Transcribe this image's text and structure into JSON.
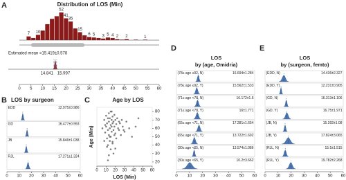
{
  "chart_data": [
    {
      "type": "histogram",
      "panel_label": "A",
      "title": "Distribution of LOS (Min)",
      "bins": [
        3,
        5,
        7,
        9,
        11,
        13,
        15,
        17,
        19,
        21,
        23,
        25,
        27,
        29,
        31,
        33,
        35,
        37,
        39,
        41,
        43,
        45,
        47,
        49,
        51,
        53,
        55,
        57
      ],
      "values": [
        7,
        4,
        10,
        18,
        30,
        40,
        45,
        52,
        41,
        35,
        22,
        15,
        9,
        6,
        5,
        4,
        3,
        5,
        4,
        2,
        1,
        2,
        0,
        1,
        0,
        1,
        0
      ],
      "value_labels": [
        "7",
        null,
        "10",
        null,
        null,
        null,
        null,
        "52",
        "41",
        "35",
        null,
        "15",
        null,
        "6",
        "5",
        null,
        "3",
        "5",
        "4",
        "2",
        null,
        "2",
        null,
        null,
        null,
        "1",
        null
      ],
      "color": "#8b1a1a",
      "xlim": [
        0,
        60
      ],
      "xticks": [
        0,
        5,
        10,
        15,
        20,
        25,
        30,
        35,
        40,
        45,
        50,
        55,
        60
      ],
      "mean": {
        "text": "Estimated mean =15.419±0.578",
        "value": 15.419,
        "low": 14.841,
        "high": 15.997
      }
    },
    {
      "type": "interval",
      "panel_label": "B",
      "title": "LOS by surgeon",
      "color": "#2e5c9e",
      "xlim": [
        0,
        60
      ],
      "xticks": [
        0,
        10,
        20,
        30,
        40,
        50,
        60
      ],
      "rows": [
        {
          "name": "EDD",
          "mean": 12.975,
          "sd": 0.986,
          "label": "12.975±0.986"
        },
        {
          "name": "GD",
          "mean": 16.477,
          "sd": 0.993,
          "label": "16.477±0.993"
        },
        {
          "name": "JB",
          "mean": 15.846,
          "sd": 1.038,
          "label": "15.846±1.038"
        },
        {
          "name": "RJL",
          "mean": 17.271,
          "sd": 1.324,
          "label": "17.271±1.324"
        }
      ]
    },
    {
      "type": "scatter",
      "panel_label": "C",
      "title": "Age by LOS",
      "x_label": "LOS (Min)",
      "y_label": "Age (Min)",
      "color": "#555555",
      "xlim": [
        0,
        60
      ],
      "xticks": [
        0,
        10,
        20,
        30,
        40,
        50,
        60
      ],
      "ylim": [
        15,
        85
      ],
      "yticks": [
        20,
        30,
        40,
        50,
        60,
        70,
        80
      ],
      "x": [
        8,
        9,
        10,
        10,
        11,
        11,
        12,
        12,
        12,
        13,
        13,
        13,
        14,
        14,
        14,
        15,
        15,
        15,
        15,
        16,
        16,
        16,
        17,
        17,
        17,
        18,
        18,
        18,
        19,
        19,
        20,
        20,
        21,
        21,
        22,
        23,
        24,
        25,
        26,
        27,
        28,
        30,
        32,
        35,
        38,
        42,
        45,
        8,
        11,
        14,
        17,
        20,
        13,
        16,
        19,
        6,
        9,
        24,
        29,
        12
      ],
      "y": [
        70,
        55,
        62,
        75,
        48,
        66,
        72,
        58,
        40,
        68,
        52,
        78,
        60,
        45,
        72,
        64,
        50,
        35,
        80,
        70,
        56,
        62,
        74,
        44,
        66,
        58,
        68,
        30,
        62,
        76,
        54,
        70,
        65,
        48,
        72,
        60,
        58,
        66,
        52,
        70,
        62,
        56,
        68,
        60,
        50,
        62,
        72,
        45,
        38,
        50,
        42,
        36,
        28,
        80,
        52,
        60,
        64,
        68,
        58,
        22
      ]
    },
    {
      "type": "interval",
      "panel_label": "D",
      "title": "LOS",
      "subtitle": "by (age, Omidria)",
      "color": "#2e5c9e",
      "xlim": [
        0,
        60
      ],
      "xticks": [
        0,
        10,
        20,
        30,
        40,
        50,
        60
      ],
      "rows": [
        {
          "name": "(78≤ age ≤92, N)",
          "mean": 16.694,
          "sd": 1.284,
          "label": "16.694±1.284"
        },
        {
          "name": "(78≤ age ≤92, Y)",
          "mean": 15.562,
          "sd": 1.533,
          "label": "15.562±1.533"
        },
        {
          "name": "(71≤ age <78, N)",
          "mean": 16.172,
          "sd": 1.6,
          "label": "16.172±1.6"
        },
        {
          "name": "(71≤ age <78, Y)",
          "mean": 16,
          "sd": 1.771,
          "label": "16±1.771"
        },
        {
          "name": "(65≤ age <71, N)",
          "mean": 17.281,
          "sd": 1.654,
          "label": "17.281±1.654"
        },
        {
          "name": "(65≤ age <71, Y)",
          "mean": 13.722,
          "sd": 1.692,
          "label": "13.722±1.692"
        },
        {
          "name": "(30≤ age <65, N)",
          "mean": 13.574,
          "sd": 1.086,
          "label": "13.574±1.086"
        },
        {
          "name": "(30≤ age <65, Y)",
          "mean": 10.2,
          "sd": 3.662,
          "label": "10.2±3.662"
        }
      ]
    },
    {
      "type": "interval",
      "panel_label": "E",
      "title": "LOS",
      "subtitle": "by (surgeon, femto)",
      "color": "#2e5c9e",
      "xlim": [
        0,
        60
      ],
      "xticks": [
        0,
        10,
        20,
        30,
        40,
        50,
        60
      ],
      "rows": [
        {
          "name": "(EDD, N)",
          "mean": 14.436,
          "sd": 2.327,
          "label": "14.436±2.327"
        },
        {
          "name": "(EDD, Y)",
          "mean": 12.231,
          "sd": 0.905,
          "label": "12.231±0.905"
        },
        {
          "name": "(GD, N)",
          "mean": 16.313,
          "sd": 1.106,
          "label": "16.313±1.106"
        },
        {
          "name": "(GD, Y)",
          "mean": 16.75,
          "sd": 1.971,
          "label": "16.75±1.971"
        },
        {
          "name": "(JB, N)",
          "mean": 15.392,
          "sd": 1.08,
          "label": "15.392±1.08"
        },
        {
          "name": "(JB, Y)",
          "mean": 17.824,
          "sd": 3.065,
          "label": "17.824±3.065"
        },
        {
          "name": "(RJL, N)",
          "mean": 15.5,
          "sd": 1.515,
          "label": "15.5±1.515"
        },
        {
          "name": "(RJL, Y)",
          "mean": 19.782,
          "sd": 2.268,
          "label": "19.782±2.268"
        }
      ]
    }
  ]
}
